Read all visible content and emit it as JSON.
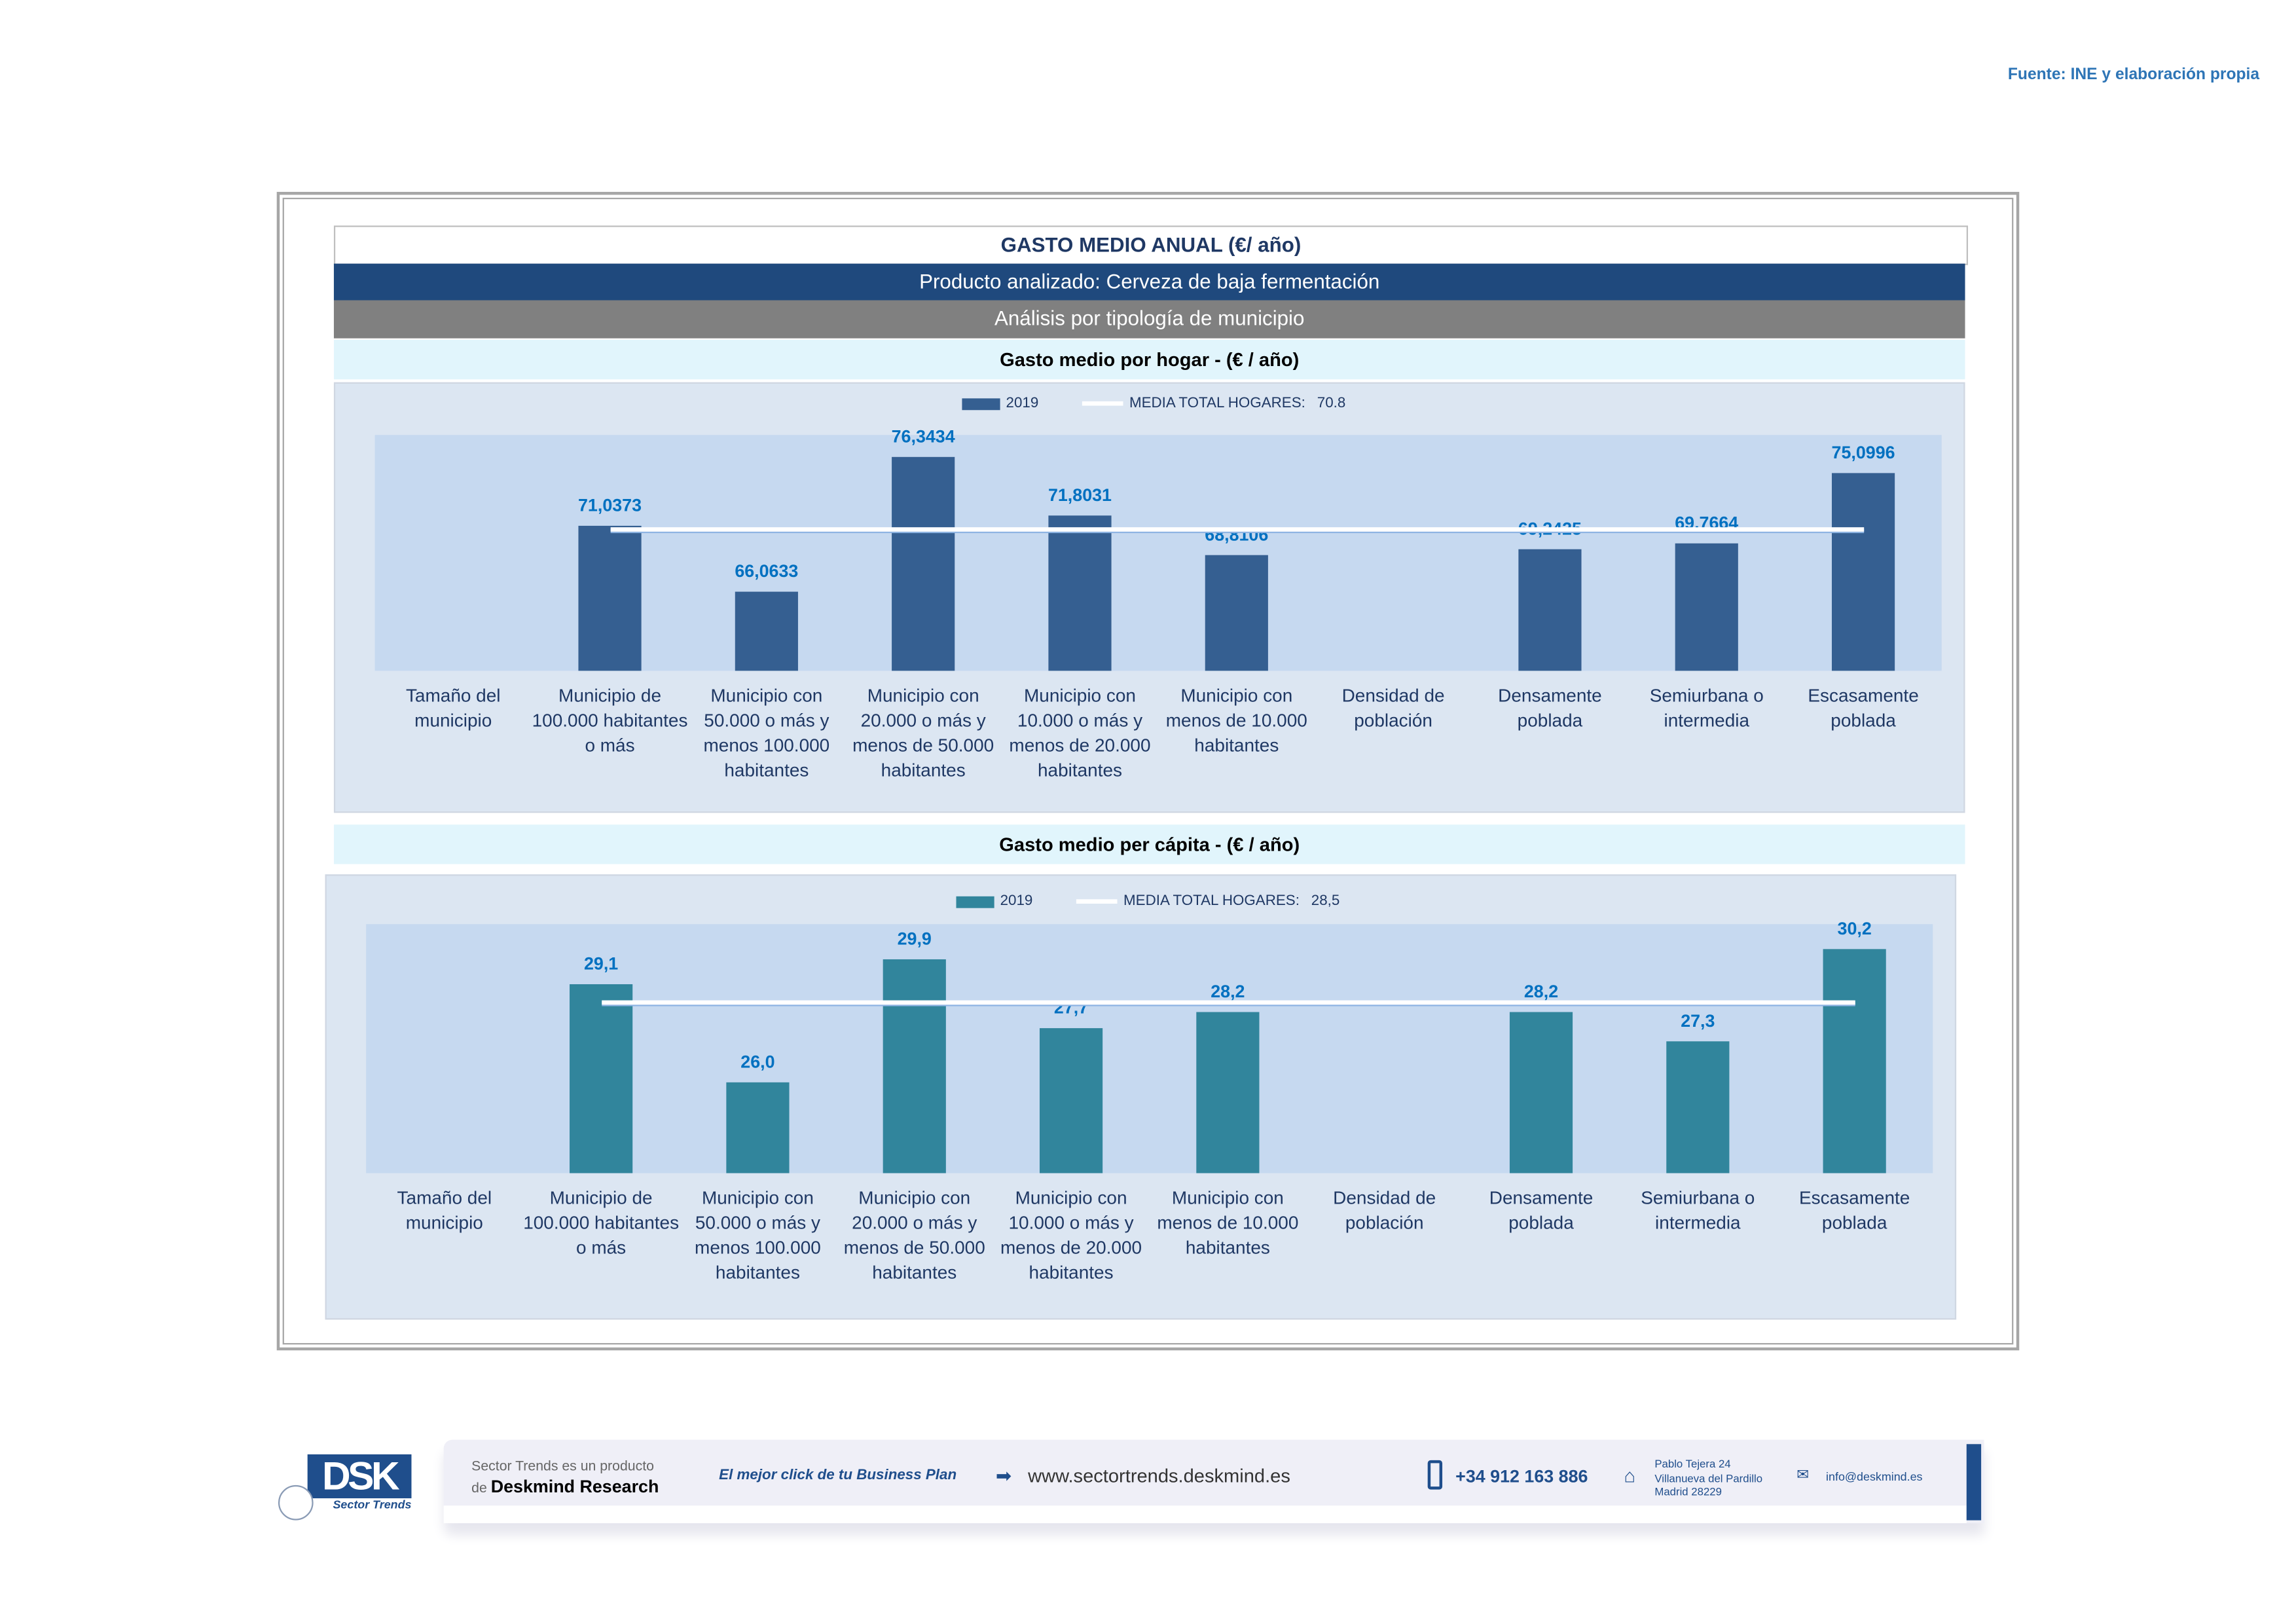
{
  "source": "Fuente: INE y elaboración propia",
  "header": {
    "title": "GASTO MEDIO ANUAL (€/ año)",
    "product": "Producto analizado: Cerveza de baja fermentación",
    "analysis": "Análisis por tipología de municipio"
  },
  "colors": {
    "bar_hogar": "#355f91",
    "bar_capita": "#31859c",
    "label": "#0070c0",
    "mean": "#ffffff"
  },
  "chart_data": [
    {
      "type": "bar",
      "title": "Gasto medio por hogar -  (€ / año)",
      "legend": {
        "series": "2019",
        "mean_label": "MEDIA TOTAL  HOGARES:",
        "mean_value": "70.8"
      },
      "categories": [
        "Tamaño del municipio",
        "Municipio de 100.000 habitantes o más",
        "Municipio con 50.000 o más y menos 100.000 habitantes",
        "Municipio con 20.000 o más y menos de 50.000 habitantes",
        "Municipio con 10.000 o más y menos de 20.000 habitantes",
        "Municipio con menos de 10.000 habitantes",
        "Densidad de población",
        "Densamente poblada",
        "Semiurbana o intermedia",
        "Escasamente poblada"
      ],
      "values": [
        null,
        71.0373,
        66.0633,
        76.3434,
        71.8031,
        68.8106,
        null,
        69.2425,
        69.7664,
        75.0996
      ],
      "value_labels": [
        "",
        "71,0373",
        "66,0633",
        "76,3434",
        "71,8031",
        "68,8106",
        "",
        "69,2425",
        "69,7664",
        "75,0996"
      ],
      "mean": 70.8,
      "ylim": [
        60,
        78
      ]
    },
    {
      "type": "bar",
      "title": "Gasto medio per cápita -  (€ / año)",
      "legend": {
        "series": "2019",
        "mean_label": "MEDIA TOTAL  HOGARES:",
        "mean_value": "28,5"
      },
      "categories": [
        "Tamaño del municipio",
        "Municipio de 100.000 habitantes o más",
        "Municipio con 50.000 o más y menos 100.000 habitantes",
        "Municipio con 20.000 o más y menos de 50.000 habitantes",
        "Municipio con 10.000 o más y menos de 20.000 habitantes",
        "Municipio con menos de 10.000 habitantes",
        "Densidad de población",
        "Densamente poblada",
        "Semiurbana o intermedia",
        "Escasamente poblada"
      ],
      "values": [
        null,
        29.1,
        26.0,
        29.9,
        27.7,
        28.2,
        null,
        28.2,
        27.3,
        30.2
      ],
      "value_labels": [
        "",
        "29,1",
        "26,0",
        "29,9",
        "27,7",
        "28,2",
        "",
        "28,2",
        "27,3",
        "30,2"
      ],
      "mean": 28.5,
      "ylim": [
        23.1,
        31.0
      ]
    }
  ],
  "footer": {
    "logo": "DSK",
    "logo_sub": "Sector Trends",
    "product_line1": "Sector Trends es un producto",
    "product_de": "de",
    "product_brand": "Deskmind Research",
    "slogan": "El mejor click de tu Business Plan",
    "website": "www.sectortrends.deskmind.es",
    "phone": "+34 912 163 886",
    "address": [
      "Pablo Tejera 24",
      "Villanueva del Pardillo",
      "Madrid 28229"
    ],
    "email": "info@deskmind.es"
  }
}
